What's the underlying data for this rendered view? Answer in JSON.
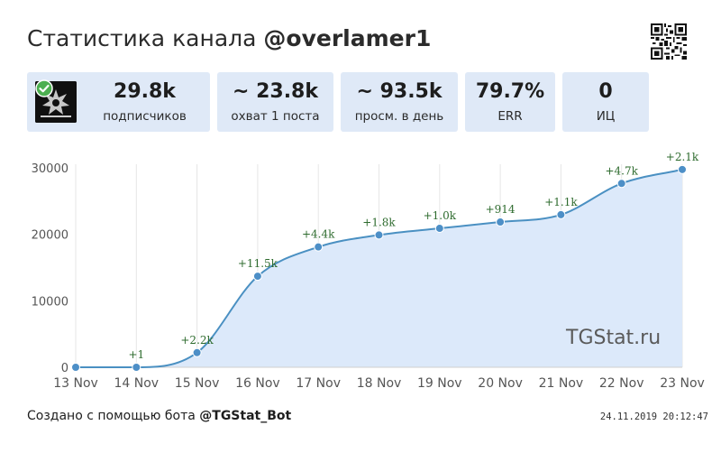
{
  "header": {
    "title_prefix": "Статистика канала",
    "channel": "@overlamer1"
  },
  "stats": [
    {
      "value": "29.8k",
      "label": "подписчиков"
    },
    {
      "value": "~ 23.8k",
      "label": "охват 1 поста"
    },
    {
      "value": "~ 93.5k",
      "label": "просм. в день"
    },
    {
      "value": "79.7%",
      "label": "ERR"
    },
    {
      "value": "0",
      "label": "ИЦ"
    }
  ],
  "colors": {
    "card_bg": "#dfe9f7",
    "line": "#4a90c2",
    "area": "#dce9fa",
    "point": "#4d8fc7",
    "delta_text": "#2e6b2e",
    "verified": "#4caf50"
  },
  "chart_data": {
    "type": "area",
    "x": [
      "13 Nov",
      "14 Nov",
      "15 Nov",
      "16 Nov",
      "17 Nov",
      "18 Nov",
      "19 Nov",
      "20 Nov",
      "21 Nov",
      "22 Nov",
      "23 Nov"
    ],
    "values": [
      0,
      1,
      2200,
      13700,
      18100,
      19900,
      20900,
      21850,
      22950,
      27650,
      29750
    ],
    "delta_labels": [
      "",
      "+1",
      "+2.2k",
      "+11.5k",
      "+4.4k",
      "+1.8k",
      "+1.0k",
      "+914",
      "+1.1k",
      "+4.7k",
      "+2.1k"
    ],
    "yticks": [
      "0",
      "10000",
      "20000",
      "30000"
    ],
    "ylim": [
      0,
      30000
    ],
    "grid": "vertical",
    "xlabel": "",
    "ylabel": ""
  },
  "watermark": "TGStat.ru",
  "footer": {
    "created_with": "Создано с помощью бота",
    "bot": "@TGStat_Bot",
    "timestamp": "24.11.2019 20:12:47"
  }
}
